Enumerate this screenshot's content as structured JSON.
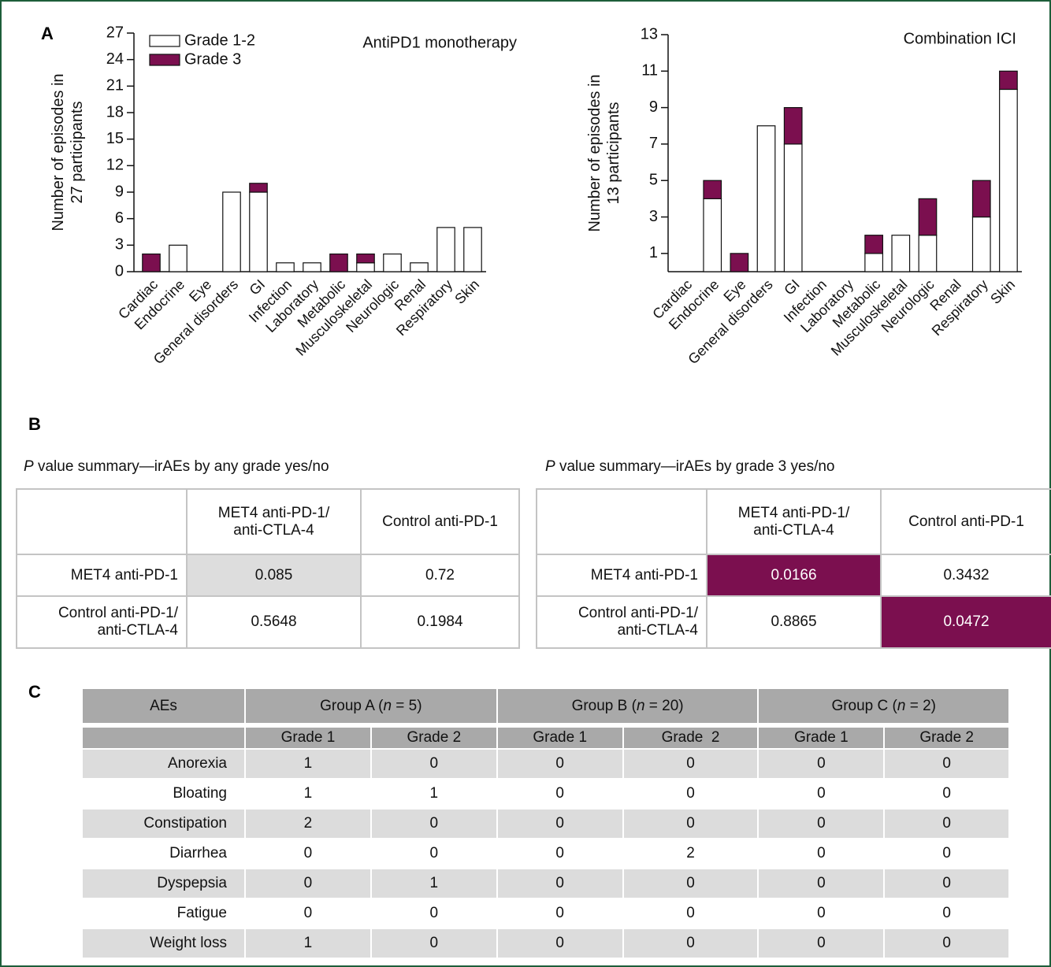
{
  "panel_labels": [
    "A",
    "B",
    "C"
  ],
  "chart_data": [
    {
      "type": "bar",
      "stacked": true,
      "title": "AntiPD1 monotherapy",
      "ylabel": [
        "Number of episodes in",
        "27 participants"
      ],
      "categories": [
        "Cardiac",
        "Endocrine",
        "Eye",
        "General disorders",
        "GI",
        "Infection",
        "Laboratory",
        "Metabolic",
        "Musculoskeletal",
        "Neurologic",
        "Renal",
        "Respiratory",
        "Skin"
      ],
      "series": [
        {
          "name": "Grade 1-2",
          "color": "#ffffff",
          "values": [
            0,
            3,
            0,
            9,
            9,
            1,
            1,
            0,
            1,
            2,
            1,
            5,
            5
          ]
        },
        {
          "name": "Grade 3",
          "color": "#7b0f4f",
          "values": [
            2,
            0,
            0,
            0,
            1,
            0,
            0,
            2,
            1,
            0,
            0,
            0,
            0
          ]
        }
      ],
      "ylim": [
        0,
        27
      ],
      "yticks": [
        0,
        3,
        6,
        9,
        12,
        15,
        18,
        21,
        24,
        27
      ],
      "legend": "upper left"
    },
    {
      "type": "bar",
      "stacked": true,
      "title": "Combination ICI",
      "ylabel": [
        "Number of episodes in",
        "13 participants"
      ],
      "categories": [
        "Cardiac",
        "Endocrine",
        "Eye",
        "General disorders",
        "GI",
        "Infection",
        "Laboratory",
        "Metabolic",
        "Musculoskeletal",
        "Neurologic",
        "Renal",
        "Respiratory",
        "Skin"
      ],
      "series": [
        {
          "color": "#ffffff",
          "values": [
            0,
            4,
            0,
            8,
            7,
            0,
            0,
            1,
            2,
            2,
            0,
            3,
            10
          ]
        },
        {
          "color": "#7b0f4f",
          "values": [
            0,
            1,
            1,
            0,
            2,
            0,
            0,
            1,
            0,
            2,
            0,
            2,
            1
          ]
        }
      ],
      "ylim": [
        0,
        13
      ],
      "yticks": [
        1,
        3,
        5,
        7,
        9,
        11,
        13
      ]
    }
  ],
  "table_b1": {
    "title_italic": "P",
    "title": " value summary—irAEs by any grade yes/no",
    "columns": [
      "MET4 anti-PD-1/\nanti-CTLA-4",
      "Control anti-PD-1"
    ],
    "rows": [
      {
        "label": "MET4 anti-PD-1",
        "values": [
          0.085,
          0.72
        ]
      },
      {
        "label": "Control anti-PD-1/\nanti-CTLA-4",
        "values": [
          0.5648,
          0.1984
        ]
      }
    ],
    "highlight_color": "#dddddd",
    "highlight_cells": [
      [
        0,
        0
      ]
    ]
  },
  "table_b2": {
    "title_italic": "P",
    "title": " value summary—irAEs by grade 3 yes/no",
    "columns": [
      "MET4 anti-PD-1/\nanti-CTLA-4",
      "Control anti-PD-1"
    ],
    "rows": [
      {
        "label": "MET4 anti-PD-1",
        "values": [
          0.0166,
          0.3432
        ]
      },
      {
        "label": "Control anti-PD-1/\nanti-CTLA-4",
        "values": [
          0.8865,
          0.0472
        ]
      }
    ],
    "highlight_color": "#7b0f4f",
    "highlight_cells": [
      [
        0,
        0
      ],
      [
        1,
        1
      ]
    ]
  },
  "table_c": {
    "first_header": "AEs",
    "groups": [
      [
        "Group A (",
        "n",
        " = 5)"
      ],
      [
        "Group B (",
        "n",
        " = 20)"
      ],
      [
        "Group C (",
        "n",
        " = 2)"
      ]
    ],
    "subheaders": [
      "Grade 1",
      "Grade 2",
      "Grade 1",
      "Grade  2",
      "Grade 1",
      "Grade 2"
    ],
    "rows": [
      {
        "label": "Anorexia",
        "values": [
          1,
          0,
          0,
          0,
          0,
          0
        ]
      },
      {
        "label": "Bloating",
        "values": [
          1,
          1,
          0,
          0,
          0,
          0
        ]
      },
      {
        "label": "Constipation",
        "values": [
          2,
          0,
          0,
          0,
          0,
          0
        ]
      },
      {
        "label": "Diarrhea",
        "values": [
          0,
          0,
          0,
          2,
          0,
          0
        ]
      },
      {
        "label": "Dyspepsia",
        "values": [
          0,
          1,
          0,
          0,
          0,
          0
        ]
      },
      {
        "label": "Fatigue",
        "values": [
          0,
          0,
          0,
          0,
          0,
          0
        ]
      },
      {
        "label": "Weight loss",
        "values": [
          1,
          0,
          0,
          0,
          0,
          0
        ]
      }
    ]
  }
}
